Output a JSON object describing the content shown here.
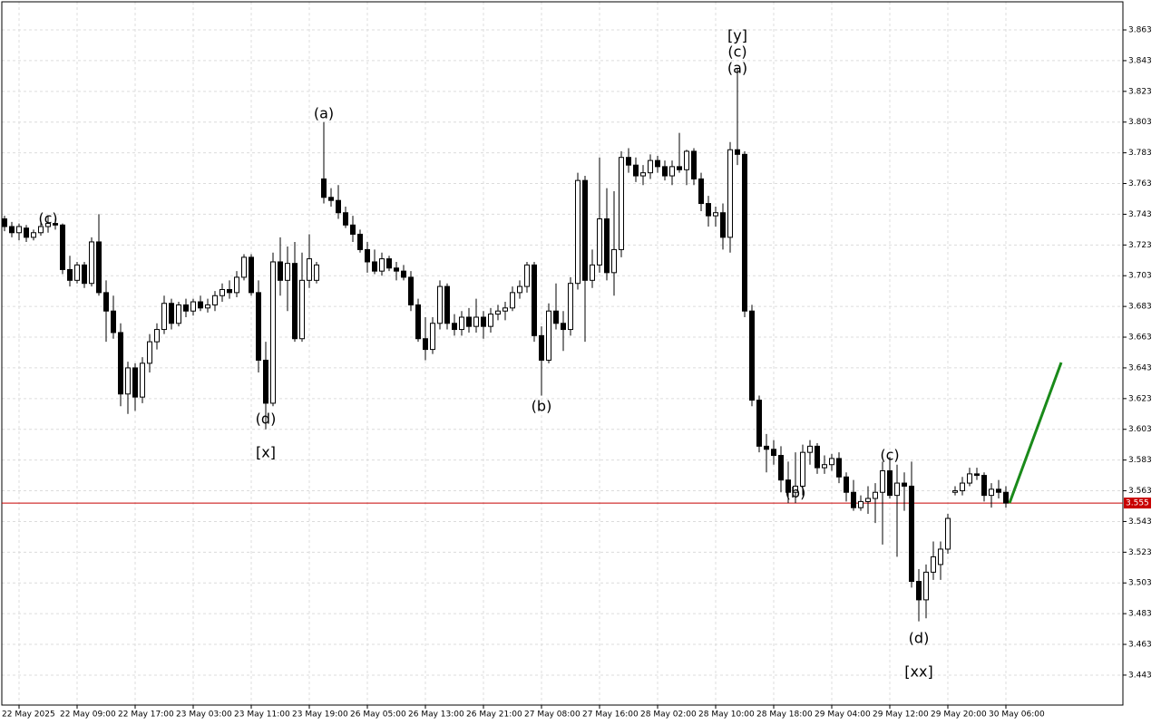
{
  "chart_data": {
    "type": "candlestick",
    "categories": [
      null,
      null,
      "22 May 2025",
      null,
      null,
      null,
      null,
      null,
      null,
      null,
      "22 May 09:00",
      null,
      null,
      null,
      null,
      null,
      null,
      null,
      "22 May 17:00",
      null,
      null,
      null,
      null,
      null,
      null,
      null,
      "23 May 03:00",
      null,
      null,
      null,
      null,
      null,
      null,
      null,
      "23 May 11:00",
      null,
      null,
      null,
      null,
      null,
      null,
      null,
      "23 May 19:00",
      null,
      null,
      null,
      null,
      null,
      null,
      null,
      "26 May 05:00",
      null,
      null,
      null,
      null,
      null,
      null,
      null,
      "26 May 13:00",
      null,
      null,
      null,
      null,
      null,
      null,
      null,
      "26 May 21:00",
      null,
      null,
      null,
      null,
      null,
      null,
      null,
      "27 May 08:00",
      null,
      null,
      null,
      null,
      null,
      null,
      null,
      "27 May 16:00",
      null,
      null,
      null,
      null,
      null,
      null,
      null,
      "28 May 02:00",
      null,
      null,
      null,
      null,
      null,
      null,
      null,
      "28 May 10:00",
      null,
      null,
      null,
      null,
      null,
      null,
      null,
      "28 May 18:00",
      null,
      null,
      null,
      null,
      null,
      null,
      null,
      "29 May 04:00",
      null,
      null,
      null,
      null,
      null,
      null,
      null,
      "29 May 12:00",
      null,
      null,
      null,
      null,
      null,
      null,
      null,
      "29 May 20:00",
      null,
      null,
      null,
      null,
      null,
      null,
      null,
      "30 May 06:00"
    ],
    "ohlc": [
      [
        3.74,
        3.742,
        3.732,
        3.735
      ],
      [
        3.735,
        3.738,
        3.728,
        3.731
      ],
      [
        3.731,
        3.737,
        3.726,
        3.735
      ],
      [
        3.734,
        3.736,
        3.725,
        3.728
      ],
      [
        3.728,
        3.733,
        3.726,
        3.731
      ],
      [
        3.731,
        3.738,
        3.729,
        3.735
      ],
      [
        3.735,
        3.742,
        3.731,
        3.737
      ],
      [
        3.737,
        3.74,
        3.733,
        3.736
      ],
      [
        3.736,
        3.737,
        3.704,
        3.707
      ],
      [
        3.707,
        3.716,
        3.696,
        3.7
      ],
      [
        3.7,
        3.712,
        3.698,
        3.71
      ],
      [
        3.71,
        3.712,
        3.695,
        3.698
      ],
      [
        3.698,
        3.728,
        3.696,
        3.725
      ],
      [
        3.725,
        3.743,
        3.69,
        3.692
      ],
      [
        3.692,
        3.7,
        3.66,
        3.68
      ],
      [
        3.68,
        3.69,
        3.662,
        3.666
      ],
      [
        3.666,
        3.672,
        3.618,
        3.626
      ],
      [
        3.626,
        3.647,
        3.613,
        3.643
      ],
      [
        3.643,
        3.646,
        3.615,
        3.624
      ],
      [
        3.624,
        3.65,
        3.62,
        3.646
      ],
      [
        3.646,
        3.665,
        3.64,
        3.66
      ],
      [
        3.66,
        3.672,
        3.655,
        3.668
      ],
      [
        3.668,
        3.69,
        3.665,
        3.685
      ],
      [
        3.685,
        3.688,
        3.668,
        3.672
      ],
      [
        3.672,
        3.686,
        3.67,
        3.684
      ],
      [
        3.684,
        3.688,
        3.676,
        3.68
      ],
      [
        3.68,
        3.688,
        3.677,
        3.686
      ],
      [
        3.686,
        3.69,
        3.68,
        3.682
      ],
      [
        3.682,
        3.688,
        3.679,
        3.684
      ],
      [
        3.684,
        3.693,
        3.68,
        3.69
      ],
      [
        3.69,
        3.698,
        3.686,
        3.694
      ],
      [
        3.694,
        3.7,
        3.688,
        3.692
      ],
      [
        3.692,
        3.706,
        3.689,
        3.702
      ],
      [
        3.702,
        3.717,
        3.7,
        3.715
      ],
      [
        3.715,
        3.717,
        3.69,
        3.692
      ],
      [
        3.692,
        3.7,
        3.64,
        3.648
      ],
      [
        3.648,
        3.66,
        3.603,
        3.62
      ],
      [
        3.62,
        3.718,
        3.618,
        3.712
      ],
      [
        3.712,
        3.728,
        3.69,
        3.7
      ],
      [
        3.7,
        3.722,
        3.68,
        3.711
      ],
      [
        3.711,
        3.725,
        3.66,
        3.662
      ],
      [
        3.662,
        3.718,
        3.66,
        3.7
      ],
      [
        3.7,
        3.73,
        3.695,
        3.714
      ],
      [
        3.7,
        3.712,
        3.698,
        3.71
      ],
      [
        3.766,
        3.803,
        3.75,
        3.754
      ],
      [
        3.754,
        3.76,
        3.748,
        3.752
      ],
      [
        3.752,
        3.762,
        3.74,
        3.744
      ],
      [
        3.744,
        3.748,
        3.734,
        3.736
      ],
      [
        3.736,
        3.742,
        3.725,
        3.73
      ],
      [
        3.73,
        3.733,
        3.718,
        3.72
      ],
      [
        3.72,
        3.725,
        3.705,
        3.712
      ],
      [
        3.712,
        3.72,
        3.704,
        3.706
      ],
      [
        3.706,
        3.718,
        3.703,
        3.714
      ],
      [
        3.714,
        3.716,
        3.706,
        3.708
      ],
      [
        3.708,
        3.712,
        3.7,
        3.706
      ],
      [
        3.706,
        3.71,
        3.7,
        3.702
      ],
      [
        3.702,
        3.706,
        3.68,
        3.684
      ],
      [
        3.684,
        3.688,
        3.66,
        3.662
      ],
      [
        3.662,
        3.676,
        3.648,
        3.655
      ],
      [
        3.655,
        3.676,
        3.652,
        3.672
      ],
      [
        3.672,
        3.7,
        3.668,
        3.696
      ],
      [
        3.696,
        3.698,
        3.668,
        3.672
      ],
      [
        3.672,
        3.678,
        3.664,
        3.668
      ],
      [
        3.668,
        3.68,
        3.664,
        3.676
      ],
      [
        3.676,
        3.682,
        3.666,
        3.67
      ],
      [
        3.67,
        3.688,
        3.666,
        3.676
      ],
      [
        3.676,
        3.68,
        3.662,
        3.67
      ],
      [
        3.67,
        3.682,
        3.666,
        3.678
      ],
      [
        3.678,
        3.684,
        3.674,
        3.68
      ],
      [
        3.68,
        3.686,
        3.674,
        3.682
      ],
      [
        3.682,
        3.696,
        3.68,
        3.692
      ],
      [
        3.692,
        3.7,
        3.688,
        3.696
      ],
      [
        3.696,
        3.712,
        3.692,
        3.71
      ],
      [
        3.71,
        3.712,
        3.66,
        3.664
      ],
      [
        3.664,
        3.67,
        3.625,
        3.648
      ],
      [
        3.648,
        3.685,
        3.646,
        3.68
      ],
      [
        3.68,
        3.698,
        3.668,
        3.672
      ],
      [
        3.672,
        3.68,
        3.654,
        3.668
      ],
      [
        3.668,
        3.702,
        3.664,
        3.698
      ],
      [
        3.698,
        3.77,
        3.694,
        3.765
      ],
      [
        3.765,
        3.768,
        3.66,
        3.7
      ],
      [
        3.7,
        3.72,
        3.695,
        3.71
      ],
      [
        3.71,
        3.78,
        3.705,
        3.74
      ],
      [
        3.74,
        3.76,
        3.7,
        3.705
      ],
      [
        3.705,
        3.758,
        3.69,
        3.72
      ],
      [
        3.72,
        3.784,
        3.715,
        3.78
      ],
      [
        3.78,
        3.786,
        3.77,
        3.775
      ],
      [
        3.775,
        3.78,
        3.764,
        3.768
      ],
      [
        3.768,
        3.775,
        3.762,
        3.77
      ],
      [
        3.77,
        3.782,
        3.766,
        3.778
      ],
      [
        3.778,
        3.781,
        3.77,
        3.774
      ],
      [
        3.774,
        3.778,
        3.765,
        3.768
      ],
      [
        3.768,
        3.778,
        3.762,
        3.774
      ],
      [
        3.774,
        3.796,
        3.77,
        3.772
      ],
      [
        3.772,
        3.785,
        3.762,
        3.784
      ],
      [
        3.784,
        3.786,
        3.762,
        3.766
      ],
      [
        3.766,
        3.77,
        3.745,
        3.75
      ],
      [
        3.75,
        3.755,
        3.735,
        3.742
      ],
      [
        3.742,
        3.748,
        3.735,
        3.744
      ],
      [
        3.744,
        3.75,
        3.72,
        3.728
      ],
      [
        3.728,
        3.79,
        3.718,
        3.785
      ],
      [
        3.785,
        3.838,
        3.775,
        3.782
      ],
      [
        3.782,
        3.784,
        3.676,
        3.68
      ],
      [
        3.68,
        3.684,
        3.618,
        3.622
      ],
      [
        3.622,
        3.625,
        3.588,
        3.592
      ],
      [
        3.592,
        3.6,
        3.575,
        3.59
      ],
      [
        3.59,
        3.596,
        3.58,
        3.586
      ],
      [
        3.586,
        3.592,
        3.562,
        3.57
      ],
      [
        3.57,
        3.582,
        3.555,
        3.562
      ],
      [
        3.562,
        3.588,
        3.555,
        3.566
      ],
      [
        3.566,
        3.593,
        3.56,
        3.588
      ],
      [
        3.588,
        3.596,
        3.58,
        3.592
      ],
      [
        3.592,
        3.594,
        3.574,
        3.578
      ],
      [
        3.578,
        3.586,
        3.574,
        3.58
      ],
      [
        3.58,
        3.587,
        3.576,
        3.584
      ],
      [
        3.584,
        3.588,
        3.568,
        3.572
      ],
      [
        3.572,
        3.575,
        3.556,
        3.562
      ],
      [
        3.562,
        3.57,
        3.55,
        3.552
      ],
      [
        3.552,
        3.56,
        3.55,
        3.556
      ],
      [
        3.556,
        3.566,
        3.548,
        3.558
      ],
      [
        3.558,
        3.568,
        3.542,
        3.562
      ],
      [
        3.562,
        3.582,
        3.528,
        3.576
      ],
      [
        3.576,
        3.585,
        3.558,
        3.56
      ],
      [
        3.56,
        3.58,
        3.52,
        3.568
      ],
      [
        3.568,
        3.575,
        3.55,
        3.566
      ],
      [
        3.566,
        3.582,
        3.5,
        3.504
      ],
      [
        3.504,
        3.512,
        3.478,
        3.492
      ],
      [
        3.492,
        3.515,
        3.48,
        3.51
      ],
      [
        3.51,
        3.53,
        3.505,
        3.52
      ],
      [
        3.515,
        3.53,
        3.505,
        3.525
      ],
      [
        3.525,
        3.548,
        3.522,
        3.545
      ],
      [
        3.562,
        3.566,
        3.56,
        3.563
      ],
      [
        3.563,
        3.572,
        3.56,
        3.568
      ],
      [
        3.568,
        3.578,
        3.566,
        3.574
      ],
      [
        3.574,
        3.578,
        3.57,
        3.573
      ],
      [
        3.573,
        3.575,
        3.556,
        3.56
      ],
      [
        3.56,
        3.568,
        3.552,
        3.564
      ],
      [
        3.564,
        3.57,
        3.558,
        3.562
      ],
      [
        3.562,
        3.566,
        3.552,
        3.555
      ]
    ],
    "ylim": [
      3.4235,
      3.8813
    ],
    "yticks": [
      3.863,
      3.843,
      3.823,
      3.803,
      3.783,
      3.763,
      3.743,
      3.723,
      3.703,
      3.683,
      3.663,
      3.643,
      3.623,
      3.603,
      3.583,
      3.563,
      3.543,
      3.523,
      3.503,
      3.483,
      3.463,
      3.443
    ],
    "grid": true,
    "up_color": "#ffffff",
    "down_color": "#000000",
    "current_price": 3.555,
    "current_price_color": "#c80000",
    "forecast": {
      "values": [
        3.555,
        3.6465
      ],
      "color": "#1a8a1a"
    },
    "annotations": [
      {
        "text": "(c)",
        "index": 6,
        "price": 3.7397,
        "color": "#2626c8"
      },
      {
        "text": "(a)",
        "index": 44,
        "price": 3.8081,
        "color": "#2626c8"
      },
      {
        "text": "(d)",
        "index": 36,
        "price": 3.6093,
        "color": "#2626c8"
      },
      {
        "text": "[x]",
        "index": 36,
        "price": 3.5875,
        "color": "#4cc44c"
      },
      {
        "text": "(b)",
        "index": 74,
        "price": 3.6175,
        "color": "#2626c8"
      },
      {
        "text": "[y]",
        "index": 101,
        "price": 3.8589,
        "color": "#4cc44c"
      },
      {
        "text": "(c)",
        "index": 101,
        "price": 3.8483,
        "color": "#2626c8"
      },
      {
        "text": "(a)",
        "index": 101,
        "price": 3.8376,
        "color": "#2626c8"
      },
      {
        "text": "(b)",
        "index": 109,
        "price": 3.5614,
        "color": "#2626c8"
      },
      {
        "text": "(c)",
        "index": 122,
        "price": 3.5857,
        "color": "#2626c8"
      },
      {
        "text": "(d)",
        "index": 126,
        "price": 3.4666,
        "color": "#2626c8"
      },
      {
        "text": "[xx]",
        "index": 126,
        "price": 3.4448,
        "color": "#4cc44c"
      }
    ]
  }
}
